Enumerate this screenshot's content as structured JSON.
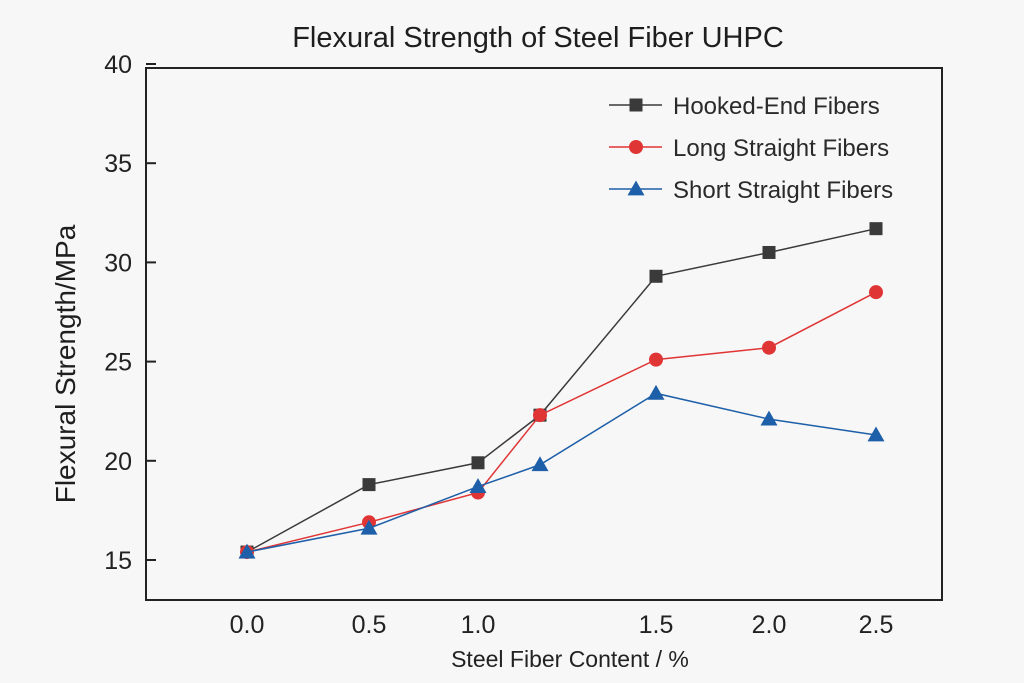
{
  "chart_data": {
    "type": "line",
    "title": "Flexural Strength of Steel Fiber UHPC",
    "xlabel": "Steel Fiber Content / %",
    "ylabel": "Flexural Strength/MPa",
    "ylim": [
      12.0,
      40.0
    ],
    "x_tick_labels": [
      "0.0",
      "0.5",
      "1.0",
      "1.5",
      "2.0",
      "2.5"
    ],
    "x_tick_values": [
      0.0,
      0.5,
      1.0,
      1.5,
      2.0,
      2.5
    ],
    "y_ticks": [
      "15",
      "20",
      "25",
      "30",
      "35",
      "40"
    ],
    "series": [
      {
        "name": "Hooked-End Fibers",
        "color": "#3a3a3a",
        "marker": "square",
        "points": [
          [
            0.0,
            15.4
          ],
          [
            0.5,
            18.8
          ],
          [
            1.0,
            19.9
          ],
          [
            1.25,
            22.3
          ],
          [
            1.5,
            29.3
          ],
          [
            2.0,
            30.5
          ],
          [
            2.5,
            31.7
          ]
        ]
      },
      {
        "name": "Long Straight Fibers",
        "color": "#e03535",
        "marker": "circle",
        "points": [
          [
            0.0,
            15.4
          ],
          [
            0.5,
            16.9
          ],
          [
            1.0,
            18.4
          ],
          [
            1.25,
            22.3
          ],
          [
            1.5,
            25.1
          ],
          [
            2.0,
            25.7
          ],
          [
            2.5,
            28.5
          ]
        ]
      },
      {
        "name": "Short Straight Fibers",
        "color": "#1d5fa8",
        "marker": "triangle",
        "points": [
          [
            0.0,
            15.4
          ],
          [
            0.5,
            16.6
          ],
          [
            1.0,
            18.7
          ],
          [
            1.25,
            19.8
          ],
          [
            1.5,
            23.4
          ],
          [
            2.0,
            22.1
          ],
          [
            2.5,
            21.3
          ]
        ]
      }
    ],
    "legend": "top-right"
  }
}
